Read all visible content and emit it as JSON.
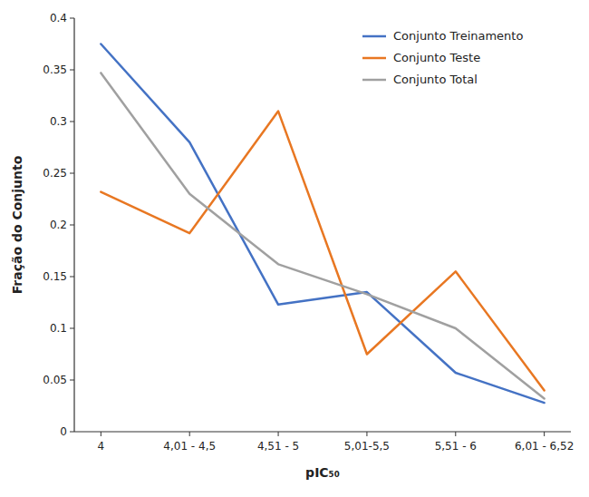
{
  "chart_data": {
    "type": "line",
    "categories": [
      "4",
      "4,01 - 4,5",
      "4,51 - 5",
      "5,01-5,5",
      "5,51 - 6",
      "6,01 - 6,52"
    ],
    "series": [
      {
        "name": "Conjunto Treinamento",
        "color": "#4472C4",
        "values": [
          0.375,
          0.28,
          0.123,
          0.135,
          0.057,
          0.028
        ]
      },
      {
        "name": "Conjunto Teste",
        "color": "#E87722",
        "values": [
          0.232,
          0.192,
          0.31,
          0.075,
          0.155,
          0.04
        ]
      },
      {
        "name": "Conjunto Total",
        "color": "#A0A0A0",
        "values": [
          0.347,
          0.23,
          0.162,
          0.133,
          0.1,
          0.032
        ]
      }
    ],
    "x_label": "pIC₅₀",
    "y_label": "Fração do Conjunto",
    "ylim": [
      0,
      0.4
    ],
    "yticks": [
      0,
      0.05,
      0.1,
      0.15,
      0.2,
      0.25,
      0.3,
      0.35,
      0.4
    ],
    "legend": "upper right",
    "grid": false
  }
}
